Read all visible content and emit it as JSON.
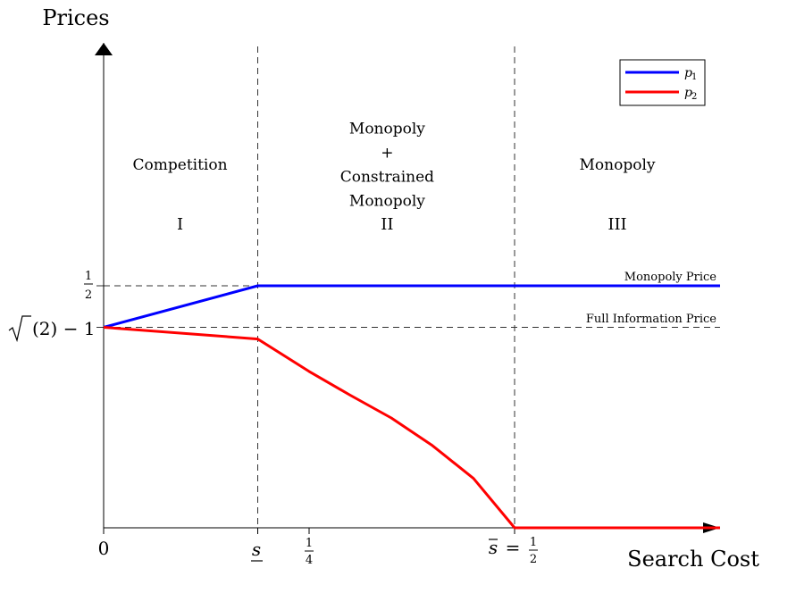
{
  "chart_data": {
    "type": "line",
    "title": "",
    "ylabel": "Prices",
    "xlabel": "Search Cost",
    "x_ticks": [
      {
        "value": 0,
        "label": "0"
      },
      {
        "value": 0.1875,
        "label": "s",
        "style": "underline"
      },
      {
        "value": 0.25,
        "label": "1/4",
        "style": "fraction"
      },
      {
        "value": 0.5,
        "label": "s̄ = 1/2",
        "style": "overline-eq-fraction"
      }
    ],
    "y_ticks": [
      {
        "value": 0.5,
        "label": "1/2",
        "style": "fraction"
      },
      {
        "value": 0.4142,
        "label": "√(2) − 1",
        "style": "sqrt"
      }
    ],
    "xlim": [
      0,
      0.75
    ],
    "ylim": [
      0,
      0.5
    ],
    "series": [
      {
        "name": "p1",
        "color": "#0000ff",
        "x": [
          0,
          0.1875,
          0.75
        ],
        "y": [
          0.4142,
          0.5,
          0.5
        ]
      },
      {
        "name": "p2",
        "color": "#ff0000",
        "x": [
          0,
          0.1875,
          0.25,
          0.3,
          0.35,
          0.4,
          0.45,
          0.5,
          0.75
        ],
        "y": [
          0.4142,
          0.39,
          0.323,
          0.274,
          0.227,
          0.17,
          0.102,
          0.0,
          0.0
        ]
      }
    ],
    "reference_lines": [
      {
        "orientation": "vertical",
        "value": 0.1875
      },
      {
        "orientation": "vertical",
        "value": 0.5
      },
      {
        "orientation": "horizontal",
        "value": 0.5,
        "label": "Monopoly Price"
      },
      {
        "orientation": "horizontal",
        "value": 0.4142,
        "label": "Full Information Price"
      }
    ],
    "regions": [
      {
        "numeral": "I",
        "lines": [
          "Competition"
        ],
        "x_center": 0.093
      },
      {
        "numeral": "II",
        "lines": [
          "Monopoly",
          "+",
          "Constrained",
          "Monopoly"
        ],
        "x_center": 0.345
      },
      {
        "numeral": "III",
        "lines": [
          "Monopoly"
        ],
        "x_center": 0.625
      }
    ],
    "legend": {
      "position": "top-right",
      "entries": [
        "p1",
        "p2"
      ]
    }
  }
}
